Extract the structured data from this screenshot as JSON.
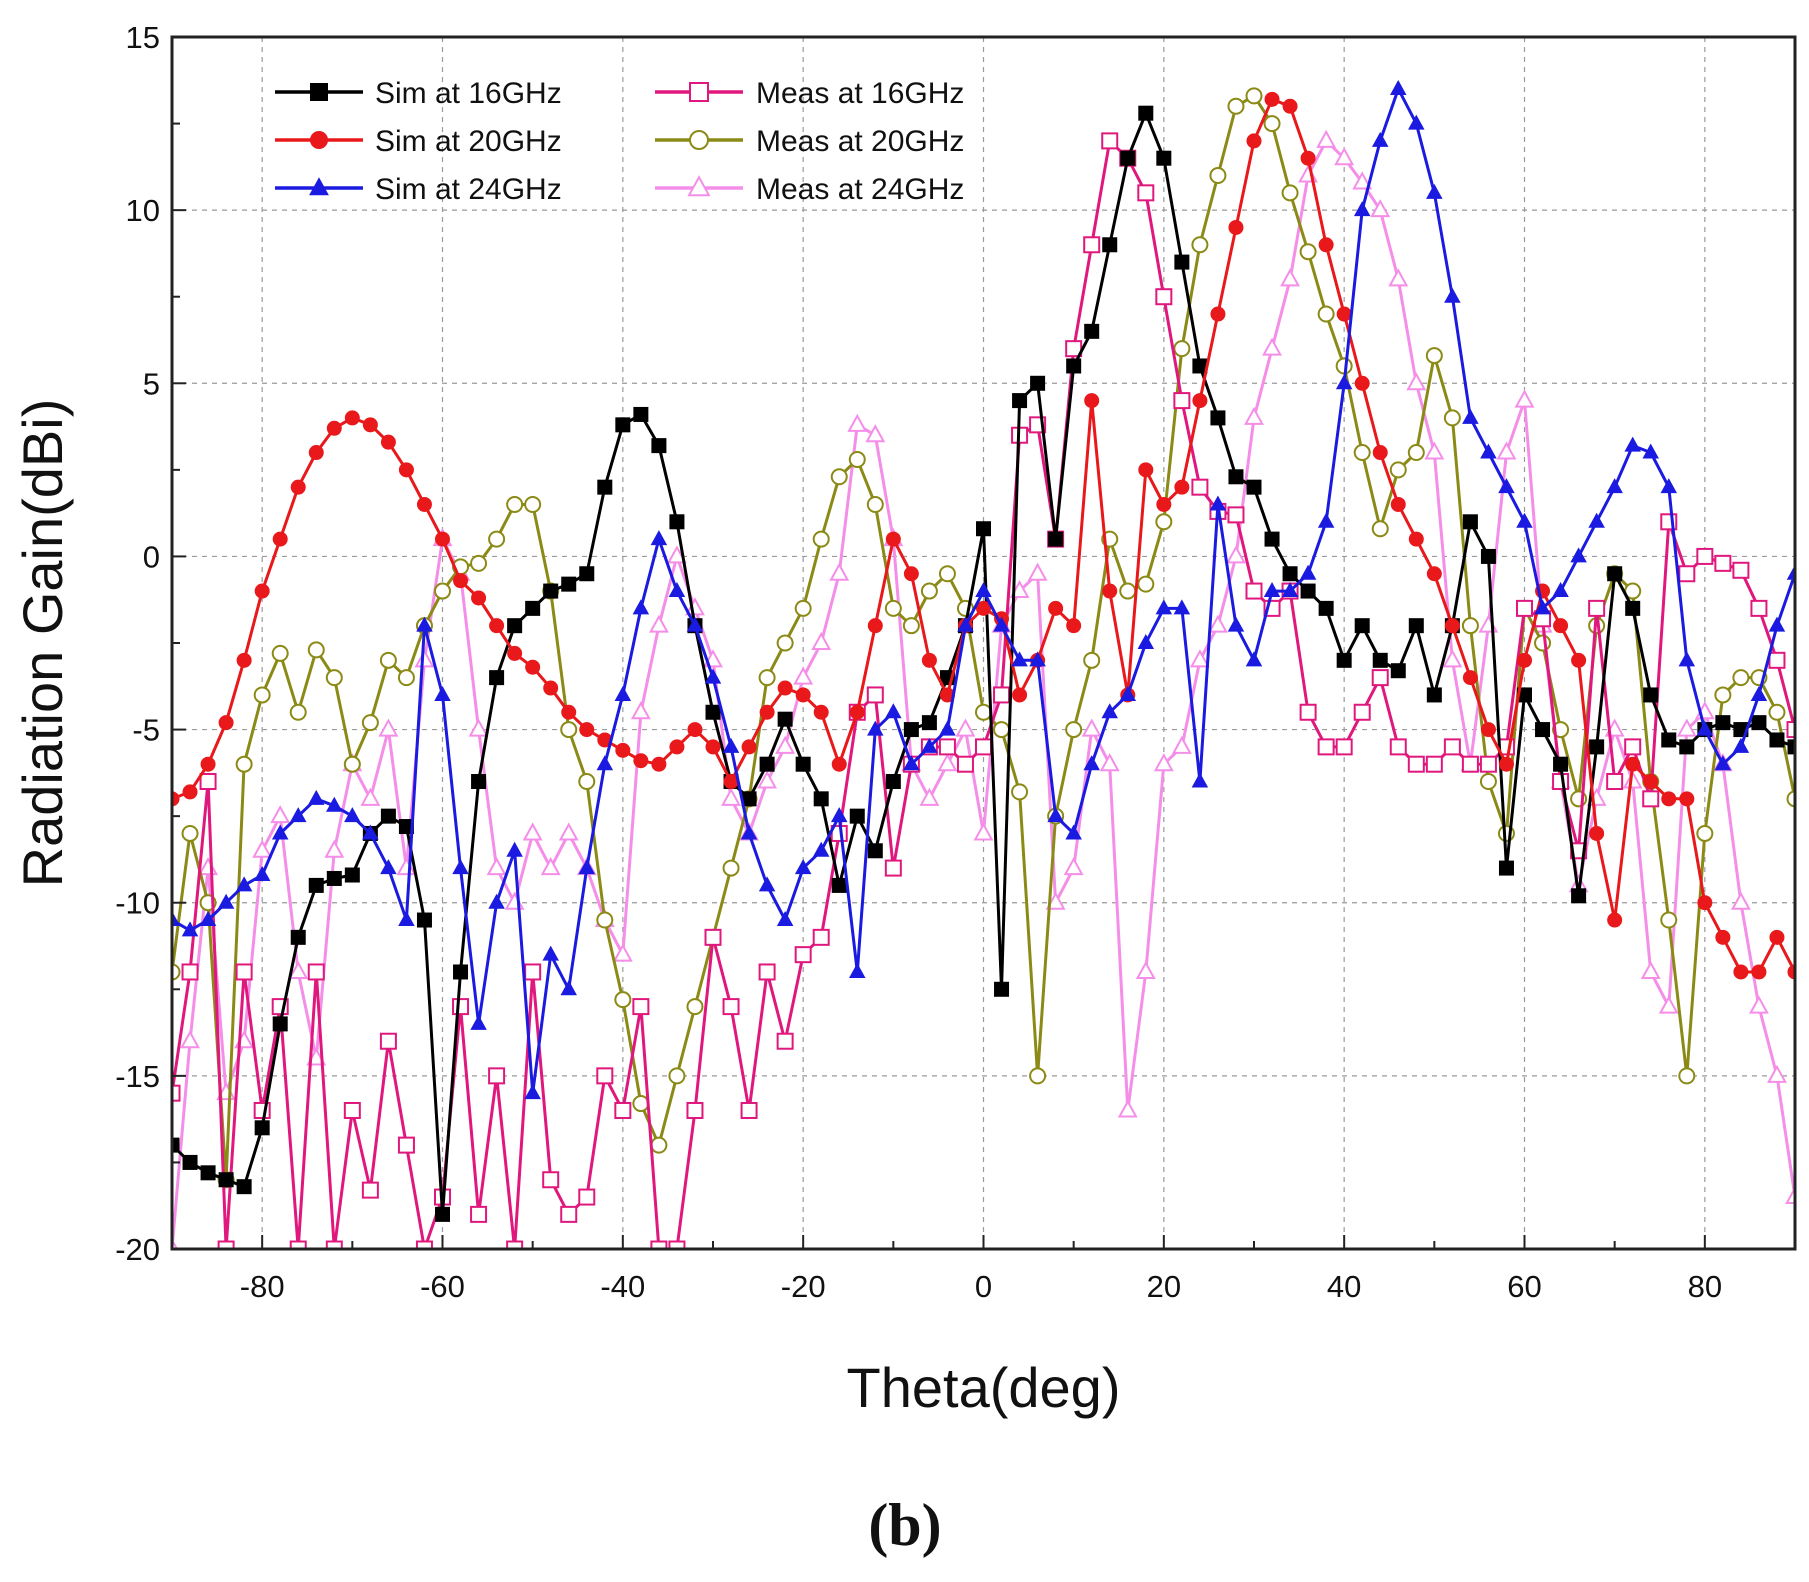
{
  "chart_data": {
    "type": "line",
    "title": "",
    "xlabel": "Theta(deg)",
    "ylabel": "Radiation Gain(dBi)",
    "xlim": [
      -90,
      90
    ],
    "ylim": [
      -20,
      15
    ],
    "grid": true,
    "legend_position": "top-left",
    "xticks": [
      -80,
      -60,
      -40,
      -20,
      0,
      20,
      40,
      60,
      80
    ],
    "yticks": [
      -20,
      -15,
      -10,
      -5,
      0,
      5,
      10,
      15
    ],
    "xtick_labels": [
      "-80",
      "-60",
      "-40",
      "-20",
      "0",
      "20",
      "40",
      "60",
      "80"
    ],
    "ytick_labels": [
      "-20",
      "-15",
      "-10",
      "-5",
      "0",
      "5",
      "10",
      "15"
    ],
    "series": [
      {
        "name": "Sim at 16GHz",
        "color": "#000000",
        "marker": "filled-square",
        "x": [
          -90,
          -88,
          -86,
          -84,
          -82,
          -80,
          -78,
          -76,
          -74,
          -72,
          -70,
          -68,
          -66,
          -64,
          -62,
          -60,
          -58,
          -56,
          -54,
          -52,
          -50,
          -48,
          -46,
          -44,
          -42,
          -40,
          -38,
          -36,
          -34,
          -32,
          -30,
          -28,
          -26,
          -24,
          -22,
          -20,
          -18,
          -16,
          -14,
          -12,
          -10,
          -8,
          -6,
          -4,
          -2,
          0,
          2,
          4,
          6,
          8,
          10,
          12,
          14,
          16,
          18,
          20,
          22,
          24,
          26,
          28,
          30,
          32,
          34,
          36,
          38,
          40,
          42,
          44,
          46,
          48,
          50,
          52,
          54,
          56,
          58,
          60,
          62,
          64,
          66,
          68,
          70,
          72,
          74,
          76,
          78,
          80,
          82,
          84,
          86,
          88,
          90
        ],
        "y": [
          -17,
          -17.5,
          -17.8,
          -18,
          -18.2,
          -16.5,
          -13.5,
          -11,
          -9.5,
          -9.3,
          -9.2,
          -8,
          -7.5,
          -7.8,
          -10.5,
          -19,
          -12,
          -6.5,
          -3.5,
          -2,
          -1.5,
          -1,
          -0.8,
          -0.5,
          2,
          3.8,
          4.1,
          3.2,
          1,
          -2,
          -4.5,
          -6.5,
          -7,
          -6,
          -4.7,
          -6,
          -7,
          -9.5,
          -7.5,
          -8.5,
          -6.5,
          -5,
          -4.8,
          -3.5,
          -2,
          0.8,
          -12.5,
          4.5,
          5,
          0.5,
          5.5,
          6.5,
          9,
          11.5,
          12.8,
          11.5,
          8.5,
          5.5,
          4,
          2.3,
          2,
          0.5,
          -0.5,
          -1,
          -1.5,
          -3,
          -2,
          -3,
          -3.3,
          -2,
          -4,
          -2,
          1,
          0,
          -9,
          -4,
          -5,
          -6,
          -9.8,
          -5.5,
          -0.5,
          -1.5,
          -4,
          -5.3,
          -5.5,
          -5,
          -4.8,
          -5,
          -4.8,
          -5.3,
          -5.5
        ]
      },
      {
        "name": "Sim at 20GHz",
        "color": "#e8181b",
        "marker": "filled-circle",
        "x": [
          -90,
          -88,
          -86,
          -84,
          -82,
          -80,
          -78,
          -76,
          -74,
          -72,
          -70,
          -68,
          -66,
          -64,
          -62,
          -60,
          -58,
          -56,
          -54,
          -52,
          -50,
          -48,
          -46,
          -44,
          -42,
          -40,
          -38,
          -36,
          -34,
          -32,
          -30,
          -28,
          -26,
          -24,
          -22,
          -20,
          -18,
          -16,
          -14,
          -12,
          -10,
          -8,
          -6,
          -4,
          -2,
          0,
          2,
          4,
          6,
          8,
          10,
          12,
          14,
          16,
          18,
          20,
          22,
          24,
          26,
          28,
          30,
          32,
          34,
          36,
          38,
          40,
          42,
          44,
          46,
          48,
          50,
          52,
          54,
          56,
          58,
          60,
          62,
          64,
          66,
          68,
          70,
          72,
          74,
          76,
          78,
          80,
          82,
          84,
          86,
          88,
          90
        ],
        "y": [
          -7,
          -6.8,
          -6,
          -4.8,
          -3,
          -1,
          0.5,
          2,
          3,
          3.7,
          4,
          3.8,
          3.3,
          2.5,
          1.5,
          0.5,
          -0.7,
          -1.2,
          -2,
          -2.8,
          -3.2,
          -3.8,
          -4.5,
          -5,
          -5.3,
          -5.6,
          -5.9,
          -6,
          -5.5,
          -5,
          -5.5,
          -6.5,
          -5.5,
          -4.5,
          -3.8,
          -4,
          -4.5,
          -6,
          -4.5,
          -2,
          0.5,
          -0.5,
          -3,
          -4,
          -2,
          -1.5,
          -1.8,
          -4,
          -3,
          -1.5,
          -2,
          4.5,
          -1,
          -4,
          2.5,
          1.5,
          2,
          4.5,
          7,
          9.5,
          12,
          13.2,
          13,
          11.5,
          9,
          7,
          5,
          3,
          1.5,
          0.5,
          -0.5,
          -2,
          -3.5,
          -5,
          -6,
          -3,
          -1,
          -2,
          -3,
          -8,
          -10.5,
          -6,
          -6.5,
          -7,
          -7,
          -10,
          -11,
          -12,
          -12,
          -11,
          -12
        ]
      },
      {
        "name": "Sim at 24GHz",
        "color": "#1a1ae0",
        "marker": "filled-triangle",
        "x": [
          -90,
          -88,
          -86,
          -84,
          -82,
          -80,
          -78,
          -76,
          -74,
          -72,
          -70,
          -68,
          -66,
          -64,
          -62,
          -60,
          -58,
          -56,
          -54,
          -52,
          -50,
          -48,
          -46,
          -44,
          -42,
          -40,
          -38,
          -36,
          -34,
          -32,
          -30,
          -28,
          -26,
          -24,
          -22,
          -20,
          -18,
          -16,
          -14,
          -12,
          -10,
          -8,
          -6,
          -4,
          -2,
          0,
          2,
          4,
          6,
          8,
          10,
          12,
          14,
          16,
          18,
          20,
          22,
          24,
          26,
          28,
          30,
          32,
          34,
          36,
          38,
          40,
          42,
          44,
          46,
          48,
          50,
          52,
          54,
          56,
          58,
          60,
          62,
          64,
          66,
          68,
          70,
          72,
          74,
          76,
          78,
          80,
          82,
          84,
          86,
          88,
          90
        ],
        "y": [
          -10.5,
          -10.8,
          -10.5,
          -10,
          -9.5,
          -9.2,
          -8,
          -7.5,
          -7,
          -7.2,
          -7.5,
          -8,
          -9,
          -10.5,
          -2,
          -4,
          -9,
          -13.5,
          -10,
          -8.5,
          -15.5,
          -11.5,
          -12.5,
          -9,
          -6,
          -4,
          -1.5,
          0.5,
          -1,
          -2,
          -3.5,
          -5.5,
          -8,
          -9.5,
          -10.5,
          -9,
          -8.5,
          -7.5,
          -12,
          -5,
          -4.5,
          -6,
          -5.5,
          -5,
          -2,
          -1,
          -2,
          -3,
          -3,
          -7.5,
          -8,
          -6,
          -4.5,
          -4,
          -2.5,
          -1.5,
          -1.5,
          -6.5,
          1.5,
          -2,
          -3,
          -1,
          -1,
          -0.5,
          1,
          5,
          10,
          12,
          13.5,
          12.5,
          10.5,
          7.5,
          4,
          3,
          2,
          1,
          -1.5,
          -1,
          0,
          1,
          2,
          3.2,
          3,
          2,
          -3,
          -5,
          -6,
          -5.5,
          -4,
          -2,
          -0.5
        ]
      },
      {
        "name": "Meas at 16GHz",
        "color": "#e0187e",
        "marker": "open-square",
        "x": [
          -90,
          -88,
          -86,
          -84,
          -82,
          -80,
          -78,
          -76,
          -74,
          -72,
          -70,
          -68,
          -66,
          -64,
          -62,
          -60,
          -58,
          -56,
          -54,
          -52,
          -50,
          -48,
          -46,
          -44,
          -42,
          -40,
          -38,
          -36,
          -34,
          -32,
          -30,
          -28,
          -26,
          -24,
          -22,
          -20,
          -18,
          -16,
          -14,
          -12,
          -10,
          -8,
          -6,
          -4,
          -2,
          0,
          2,
          4,
          6,
          8,
          10,
          12,
          14,
          16,
          18,
          20,
          22,
          24,
          26,
          28,
          30,
          32,
          34,
          36,
          38,
          40,
          42,
          44,
          46,
          48,
          50,
          52,
          54,
          56,
          58,
          60,
          62,
          64,
          66,
          68,
          70,
          72,
          74,
          76,
          78,
          80,
          82,
          84,
          86,
          88,
          90
        ],
        "y": [
          -15.5,
          -12,
          -6.5,
          -20,
          -12,
          -16,
          -13,
          -20,
          -12,
          -20,
          -16,
          -18.3,
          -14,
          -17,
          -20,
          -18.5,
          -13,
          -19,
          -15,
          -20,
          -12,
          -18,
          -19,
          -18.5,
          -15,
          -16,
          -13,
          -20,
          -20,
          -16,
          -11,
          -13,
          -16,
          -12,
          -14,
          -11.5,
          -11,
          -8,
          -4.5,
          -4,
          -9,
          -6,
          -5.5,
          -5.5,
          -6,
          -5.5,
          -4,
          3.5,
          3.8,
          0.5,
          6,
          9,
          12,
          11.5,
          10.5,
          7.5,
          4.5,
          2,
          1.3,
          1.2,
          -1,
          -1.5,
          -1,
          -4.5,
          -5.5,
          -5.5,
          -4.5,
          -3.5,
          -5.5,
          -6,
          -6,
          -5.5,
          -6,
          -6,
          -5.5,
          -1.5,
          -1.8,
          -6.5,
          -8.5,
          -1.5,
          -6.5,
          -5.5,
          -7,
          1,
          -0.5,
          0,
          -0.2,
          -0.4,
          -1.5,
          -3,
          -5
        ]
      },
      {
        "name": "Meas at 20GHz",
        "color": "#8c8a16",
        "marker": "open-circle",
        "x": [
          -90,
          -88,
          -86,
          -84,
          -82,
          -80,
          -78,
          -76,
          -74,
          -72,
          -70,
          -68,
          -66,
          -64,
          -62,
          -60,
          -58,
          -56,
          -54,
          -52,
          -50,
          -48,
          -46,
          -44,
          -42,
          -40,
          -38,
          -36,
          -34,
          -32,
          -30,
          -28,
          -26,
          -24,
          -22,
          -20,
          -18,
          -16,
          -14,
          -12,
          -10,
          -8,
          -6,
          -4,
          -2,
          0,
          2,
          4,
          6,
          8,
          10,
          12,
          14,
          16,
          18,
          20,
          22,
          24,
          26,
          28,
          30,
          32,
          34,
          36,
          38,
          40,
          42,
          44,
          46,
          48,
          50,
          52,
          54,
          56,
          58,
          60,
          62,
          64,
          66,
          68,
          70,
          72,
          74,
          76,
          78,
          80,
          82,
          84,
          86,
          88,
          90
        ],
        "y": [
          -12,
          -8,
          -10,
          -18,
          -6,
          -4,
          -2.8,
          -4.5,
          -2.7,
          -3.5,
          -6,
          -4.8,
          -3,
          -3.5,
          -2,
          -1,
          -0.3,
          -0.2,
          0.5,
          1.5,
          1.5,
          -1,
          -5,
          -6.5,
          -10.5,
          -12.8,
          -15.8,
          -17,
          -15,
          -13,
          -11,
          -9,
          -7,
          -3.5,
          -2.5,
          -1.5,
          0.5,
          2.3,
          2.8,
          1.5,
          -1.5,
          -2,
          -1,
          -0.5,
          -1.5,
          -4.5,
          -5,
          -6.8,
          -15,
          -7.5,
          -5,
          -3,
          0.5,
          -1,
          -0.8,
          1,
          6,
          9,
          11,
          13,
          13.3,
          12.5,
          10.5,
          8.8,
          7,
          5.5,
          3,
          0.8,
          2.5,
          3,
          5.8,
          4,
          -2,
          -6.5,
          -8,
          -1.5,
          -2.5,
          -5,
          -7,
          -2,
          -0.5,
          -1,
          -6.5,
          -10.5,
          -15,
          -8,
          -4,
          -3.5,
          -3.5,
          -4.5,
          -7
        ]
      },
      {
        "name": "Meas at 24GHz",
        "color": "#f58ee8",
        "marker": "open-triangle",
        "x": [
          -90,
          -88,
          -86,
          -84,
          -82,
          -80,
          -78,
          -76,
          -74,
          -72,
          -70,
          -68,
          -66,
          -64,
          -62,
          -60,
          -58,
          -56,
          -54,
          -52,
          -50,
          -48,
          -46,
          -44,
          -42,
          -40,
          -38,
          -36,
          -34,
          -32,
          -30,
          -28,
          -26,
          -24,
          -22,
          -20,
          -18,
          -16,
          -14,
          -12,
          -10,
          -8,
          -6,
          -4,
          -2,
          0,
          2,
          4,
          6,
          8,
          10,
          12,
          14,
          16,
          18,
          20,
          22,
          24,
          26,
          28,
          30,
          32,
          34,
          36,
          38,
          40,
          42,
          44,
          46,
          48,
          50,
          52,
          54,
          56,
          58,
          60,
          62,
          64,
          66,
          68,
          70,
          72,
          74,
          76,
          78,
          80,
          82,
          84,
          86,
          88,
          90
        ],
        "y": [
          -20,
          -14,
          -9,
          -15.5,
          -14,
          -8.5,
          -7.5,
          -12,
          -14.5,
          -8.5,
          -6,
          -7,
          -5,
          -9,
          -3,
          0.5,
          -0.5,
          -5,
          -9,
          -10,
          -8,
          -9,
          -8,
          -9,
          -10.5,
          -11.5,
          -4.5,
          -2,
          0,
          -1.5,
          -3,
          -7,
          -8,
          -6.5,
          -5.5,
          -3.5,
          -2.5,
          -0.5,
          3.8,
          3.5,
          0.5,
          -6,
          -7,
          -6,
          -5,
          -8,
          -2,
          -1,
          -0.5,
          -10,
          -9,
          -5,
          -6,
          -16,
          -12,
          -6,
          -5.5,
          -3,
          -2,
          0,
          4,
          6,
          8,
          11,
          12,
          11.5,
          10.8,
          10,
          8,
          5,
          3,
          -3,
          -6,
          -2,
          3,
          4.5,
          -2,
          -6.5,
          -9.5,
          -7,
          -5,
          -6.5,
          -12,
          -13,
          -5,
          -4.5,
          -6,
          -10,
          -13,
          -15,
          -18.5
        ]
      }
    ]
  },
  "caption": "(b)"
}
